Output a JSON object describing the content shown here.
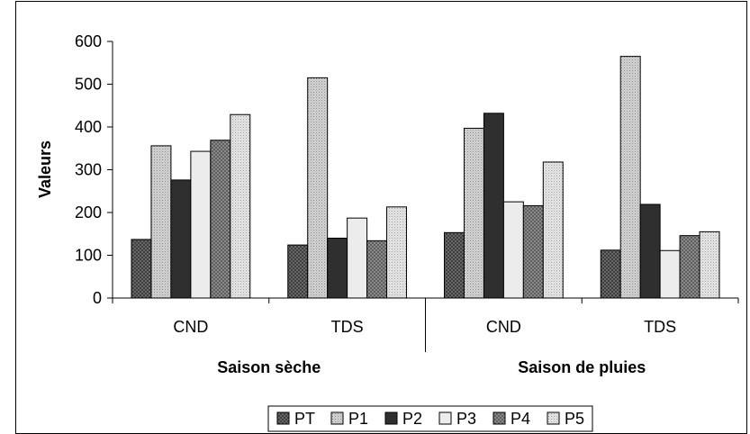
{
  "chart_data": {
    "type": "bar",
    "title": "",
    "ylabel": "Valeurs",
    "xlabel": "",
    "ylim": [
      0,
      600
    ],
    "yticks": [
      0,
      100,
      200,
      300,
      400,
      500,
      600
    ],
    "grid": false,
    "legend_position": "bottom",
    "categories": [
      "CND",
      "TDS",
      "CND",
      "TDS"
    ],
    "groups": [
      {
        "label": "Saison sèche",
        "categories": [
          "CND",
          "TDS"
        ]
      },
      {
        "label": "Saison de pluies",
        "categories": [
          "CND",
          "TDS"
        ]
      }
    ],
    "series": [
      {
        "name": "PT",
        "values": [
          137,
          124,
          153,
          112
        ],
        "color": "#6e6e6e",
        "pattern": "cross-dark"
      },
      {
        "name": "P1",
        "values": [
          356,
          515,
          397,
          565
        ],
        "color": "#c8c8c8",
        "pattern": "dots-light"
      },
      {
        "name": "P2",
        "values": [
          276,
          140,
          432,
          219
        ],
        "color": "#333333",
        "pattern": "solid-dark"
      },
      {
        "name": "P3",
        "values": [
          343,
          187,
          225,
          111
        ],
        "color": "#ebebeb",
        "pattern": "solid-light"
      },
      {
        "name": "P4",
        "values": [
          369,
          134,
          216,
          146
        ],
        "color": "#8c8c8c",
        "pattern": "cross-mid"
      },
      {
        "name": "P5",
        "values": [
          429,
          213,
          318,
          155
        ],
        "color": "#dcdcdc",
        "pattern": "dots-pale"
      }
    ]
  }
}
